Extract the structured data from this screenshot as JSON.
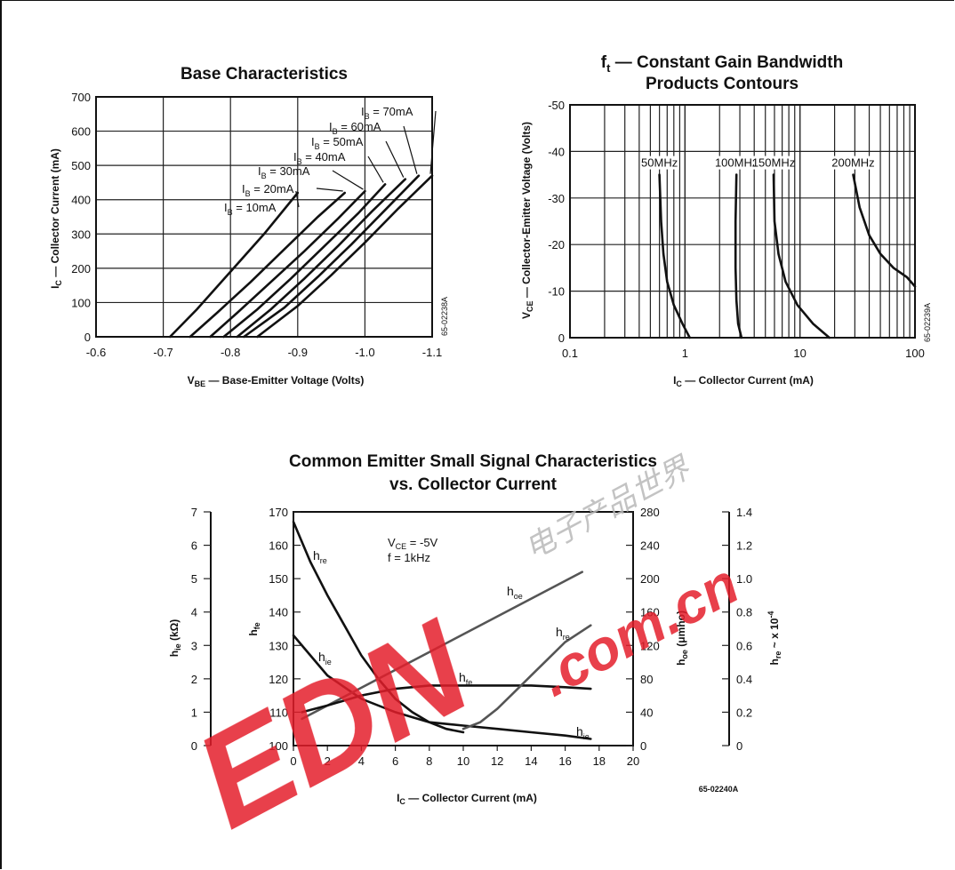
{
  "chart_data": [
    {
      "id": "base",
      "type": "line",
      "title": "Base Characteristics",
      "xlabel_main": "V",
      "xlabel_sub": "BE",
      "xlabel_rest": " — Base-Emitter Voltage (Volts)",
      "ylabel_main": "I",
      "ylabel_sub": "C",
      "ylabel_rest": " — Collector Current (mA)",
      "xlim": [
        -0.6,
        -1.1
      ],
      "ylim": [
        0,
        700
      ],
      "xticks": [
        -0.6,
        -0.7,
        -0.8,
        -0.9,
        -1.0,
        -1.1
      ],
      "xtick_labels": [
        "-0.6",
        "-0.7",
        "-0.8",
        "-0.9",
        "-1.0",
        "-1.1"
      ],
      "yticks": [
        0,
        100,
        200,
        300,
        400,
        500,
        600,
        700
      ],
      "ytick_labels": [
        "0",
        "100",
        "200",
        "300",
        "400",
        "500",
        "600",
        "700"
      ],
      "code": "65-02238A",
      "series": [
        {
          "name": "I_B = 10mA",
          "label_main": "I",
          "label_sub": "B",
          "label_rest": " = 10mA",
          "x": [
            -0.71,
            -0.75,
            -0.8,
            -0.85,
            -0.9
          ],
          "y": [
            0,
            80,
            190,
            300,
            420
          ]
        },
        {
          "name": "I_B = 20mA",
          "label_main": "I",
          "label_sub": "B",
          "label_rest": " = 20mA",
          "x": [
            -0.74,
            -0.78,
            -0.83,
            -0.88,
            -0.93,
            -0.97
          ],
          "y": [
            0,
            70,
            160,
            255,
            350,
            420
          ]
        },
        {
          "name": "I_B = 30mA",
          "label_main": "I",
          "label_sub": "B",
          "label_rest": " = 30mA",
          "x": [
            -0.77,
            -0.81,
            -0.86,
            -0.91,
            -0.96,
            -1.0
          ],
          "y": [
            0,
            70,
            160,
            250,
            345,
            425
          ]
        },
        {
          "name": "I_B = 40mA",
          "label_main": "I",
          "label_sub": "B",
          "label_rest": " = 40mA",
          "x": [
            -0.79,
            -0.84,
            -0.89,
            -0.94,
            -0.99,
            -1.03
          ],
          "y": [
            0,
            80,
            170,
            265,
            360,
            445
          ]
        },
        {
          "name": "I_B = 50mA",
          "label_main": "I",
          "label_sub": "B",
          "label_rest": " = 50mA",
          "x": [
            -0.81,
            -0.86,
            -0.91,
            -0.96,
            -1.01,
            -1.06
          ],
          "y": [
            0,
            80,
            170,
            265,
            365,
            460
          ]
        },
        {
          "name": "I_B = 60mA",
          "label_main": "I",
          "label_sub": "B",
          "label_rest": " = 60mA",
          "x": [
            -0.82,
            -0.88,
            -0.93,
            -0.98,
            -1.03,
            -1.08
          ],
          "y": [
            0,
            85,
            175,
            270,
            370,
            470
          ]
        },
        {
          "name": "I_B = 70mA",
          "label_main": "I",
          "label_sub": "B",
          "label_rest": " = 70mA",
          "x": [
            -0.84,
            -0.9,
            -0.95,
            -1.0,
            -1.05,
            -1.1
          ],
          "y": [
            0,
            90,
            180,
            275,
            375,
            470
          ]
        }
      ]
    },
    {
      "id": "ft",
      "type": "line",
      "title_main": "f",
      "title_sub": "t",
      "title_rest": " — Constant Gain Bandwidth",
      "title_line2": "Products Contours",
      "xlabel_main": "I",
      "xlabel_sub": "C",
      "xlabel_rest": " — Collector Current (mA)",
      "ylabel_main": "V",
      "ylabel_sub": "CE",
      "ylabel_rest": " — Collector-Emitter Voltage (Volts)",
      "xscale": "log",
      "xlim": [
        0.1,
        100
      ],
      "ylim": [
        0,
        -50
      ],
      "xticks": [
        0.1,
        1,
        10,
        100
      ],
      "xtick_labels": [
        "0.1",
        "1",
        "10",
        "100"
      ],
      "yticks": [
        0,
        -10,
        -20,
        -30,
        -40,
        -50
      ],
      "ytick_labels": [
        "0",
        "-10",
        "-20",
        "-30",
        "-40",
        "-50"
      ],
      "code": "65-02239A",
      "series": [
        {
          "name": "50MHz",
          "label": "50MHz",
          "x": [
            0.6,
            0.62,
            0.65,
            0.7,
            0.8,
            0.95,
            1.1
          ],
          "y": [
            -35,
            -25,
            -18,
            -12,
            -7,
            -3,
            0
          ]
        },
        {
          "name": "100MHz",
          "label": "100MHz",
          "x": [
            2.8,
            2.75,
            2.75,
            2.8,
            2.9,
            3.1
          ],
          "y": [
            -35,
            -25,
            -15,
            -8,
            -3,
            0
          ]
        },
        {
          "name": "150MHz",
          "label": "150MHz",
          "x": [
            5.9,
            6.0,
            6.5,
            7.5,
            9.5,
            13,
            18
          ],
          "y": [
            -35,
            -25,
            -18,
            -12,
            -7,
            -3,
            0
          ]
        },
        {
          "name": "200MHz",
          "label": "200MHz",
          "x": [
            29,
            33,
            40,
            50,
            65,
            85,
            100
          ],
          "y": [
            -35,
            -28,
            -22,
            -18,
            -15,
            -13,
            -11
          ]
        }
      ]
    },
    {
      "id": "ce",
      "type": "line",
      "title": "Common Emitter Small Signal Characteristics",
      "title_line2": "vs. Collector Current",
      "xlabel_main": "I",
      "xlabel_sub": "C",
      "xlabel_rest": " — Collector Current (mA)",
      "xlim": [
        0,
        20
      ],
      "xticks": [
        0,
        2,
        4,
        6,
        8,
        10,
        12,
        14,
        16,
        18,
        20
      ],
      "xtick_labels": [
        "0",
        "2",
        "4",
        "6",
        "8",
        "10",
        "12",
        "14",
        "16",
        "18",
        "20"
      ],
      "conditions": [
        {
          "main": "V",
          "sub": "CE",
          "rest": " = -5V"
        },
        {
          "main": "f = 1kHz",
          "sub": "",
          "rest": ""
        }
      ],
      "code": "65-02240A",
      "axes": {
        "hie": {
          "label_main": "h",
          "label_sub": "ie",
          "label_rest": " (kΩ)",
          "range": [
            0,
            7
          ],
          "ticks": [
            "0",
            "1",
            "2",
            "3",
            "4",
            "5",
            "6",
            "7"
          ]
        },
        "hfe": {
          "label_main": "h",
          "label_sub": "fe",
          "label_rest": "",
          "range": [
            100,
            170
          ],
          "ticks": [
            "100",
            "110",
            "120",
            "130",
            "140",
            "150",
            "160",
            "170"
          ]
        },
        "hoe": {
          "label_main": "h",
          "label_sub": "oe",
          "label_rest": " (μmho)",
          "range": [
            0,
            280
          ],
          "ticks": [
            "0",
            "40",
            "80",
            "120",
            "160",
            "200",
            "240",
            "280"
          ]
        },
        "hre": {
          "label_main": "h",
          "label_sub": "re",
          "label_rest": " ~ x 10",
          "label_sup": "-4",
          "range": [
            0,
            1.4
          ],
          "ticks": [
            "0",
            "0.2",
            "0.4",
            "0.6",
            "0.8",
            "1.0",
            "1.2",
            "1.4"
          ]
        }
      },
      "series": [
        {
          "name": "h_re",
          "label_main": "h",
          "label_sub": "re",
          "axis": "hfe",
          "x": [
            0,
            1,
            2,
            3,
            4,
            5,
            6,
            7,
            8,
            9,
            10
          ],
          "y": [
            167,
            155,
            145,
            136,
            127,
            120,
            114,
            110,
            107,
            105,
            104
          ]
        },
        {
          "name": "h_ie",
          "label_main": "h",
          "label_sub": "ie",
          "axis": "hfe",
          "x": [
            0,
            2,
            4,
            6,
            8,
            10,
            12,
            14,
            16,
            17.5
          ],
          "y": [
            133,
            121,
            114,
            110,
            107,
            106,
            105,
            104,
            103,
            102
          ]
        },
        {
          "name": "h_oe",
          "label_main": "h",
          "label_sub": "oe",
          "axis": "hfe",
          "x": [
            0.5,
            17
          ],
          "y": [
            108,
            152
          ]
        },
        {
          "name": "h_fe",
          "label_main": "h",
          "label_sub": "fe",
          "axis": "hfe",
          "x": [
            0.5,
            2,
            4,
            6,
            8,
            10,
            12,
            14,
            16,
            17.5
          ],
          "y": [
            110,
            112,
            115,
            117,
            118,
            118,
            118,
            118,
            117.5,
            117
          ]
        },
        {
          "name": "h_re",
          "label_main": "h",
          "label_sub": "re",
          "axis": "hfe",
          "x": [
            10,
            11,
            12,
            13,
            14,
            15,
            16,
            17.5
          ],
          "y": [
            105,
            107,
            111,
            116,
            121,
            126,
            131,
            136
          ]
        }
      ]
    }
  ],
  "watermark": {
    "brand": "EDN",
    "domain": ".com.cn",
    "cn": "电子产品世界",
    "color": "#e41e2b"
  }
}
